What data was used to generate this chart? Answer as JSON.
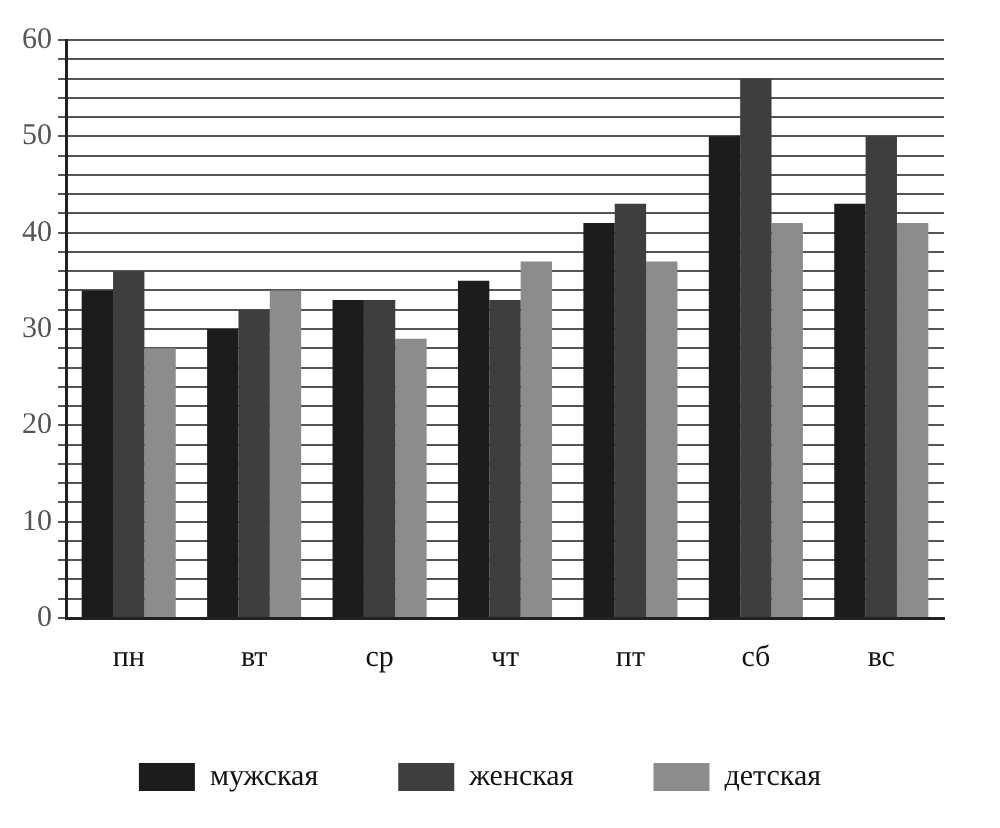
{
  "chart_data": {
    "type": "bar",
    "categories": [
      "пн",
      "вт",
      "ср",
      "чт",
      "пт",
      "сб",
      "вс"
    ],
    "series": [
      {
        "name": "мужская",
        "color": "#1c1c1c",
        "values": [
          34,
          30,
          33,
          35,
          41,
          50,
          43
        ]
      },
      {
        "name": "женская",
        "color": "#3e3e3e",
        "values": [
          36,
          32,
          33,
          33,
          43,
          56,
          50
        ]
      },
      {
        "name": "детская",
        "color": "#8c8c8c",
        "values": [
          28,
          34,
          29,
          37,
          37,
          41,
          41
        ]
      }
    ],
    "ylim": [
      0,
      60
    ],
    "yticks": [
      0,
      {
        "value": 2,
        "label": null
      },
      {
        "value": 4,
        "label": null
      },
      {
        "value": 6,
        "label": null
      },
      {
        "value": 8,
        "label": null
      },
      10,
      {
        "value": 12,
        "label": null
      },
      {
        "value": 14,
        "label": null
      },
      {
        "value": 16,
        "label": null
      },
      {
        "value": 18,
        "label": null
      },
      20,
      {
        "value": 22,
        "label": null
      },
      {
        "value": 24,
        "label": null
      },
      {
        "value": 26,
        "label": null
      },
      {
        "value": 28,
        "label": null
      },
      30,
      {
        "value": 32,
        "label": null
      },
      {
        "value": 34,
        "label": null
      },
      {
        "value": 36,
        "label": null
      },
      {
        "value": 38,
        "label": null
      },
      40,
      {
        "value": 42,
        "label": null
      },
      {
        "value": 44,
        "label": null
      },
      {
        "value": 46,
        "label": null
      },
      {
        "value": 48,
        "label": null
      },
      50,
      {
        "value": 52,
        "label": null
      },
      {
        "value": 54,
        "label": null
      },
      {
        "value": 56,
        "label": null
      },
      {
        "value": 58,
        "label": null
      },
      60
    ],
    "grid": "y",
    "legend": "bottom"
  }
}
